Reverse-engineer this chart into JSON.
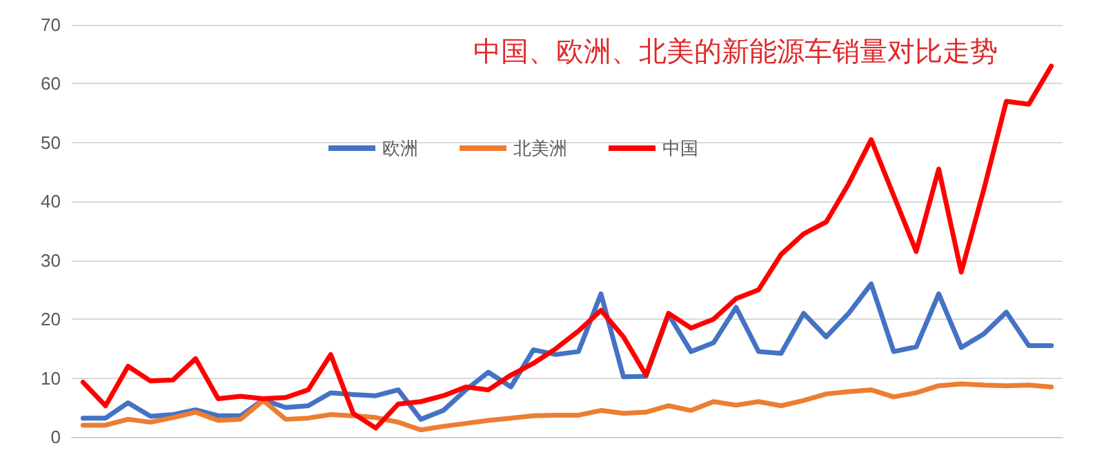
{
  "chart_data": {
    "type": "line",
    "title": "中国、欧洲、北美的新能源车销量对比走势",
    "categories": [
      null,
      null,
      null,
      null,
      null,
      null,
      null,
      null,
      null,
      null,
      null,
      null,
      null,
      null,
      null,
      null,
      null,
      null,
      null,
      null,
      null,
      null,
      null,
      null,
      null,
      null,
      null,
      null,
      null,
      null,
      null,
      null,
      null,
      null,
      null,
      null,
      null,
      null,
      null,
      null,
      null,
      null,
      null,
      null
    ],
    "series": [
      {
        "name": "欧洲",
        "color": "#4472c4",
        "values": [
          3.2,
          3.2,
          5.8,
          3.5,
          3.8,
          4.6,
          3.6,
          3.6,
          6.3,
          5,
          5.3,
          7.5,
          7.2,
          7,
          8,
          3,
          4.5,
          8,
          11,
          8.5,
          14.8,
          14,
          14.5,
          24.3,
          10.2,
          10.3,
          20.8,
          14.5,
          16,
          22,
          14.5,
          14.2,
          21,
          17,
          21,
          26,
          14.5,
          15.3,
          24.3,
          15.2,
          17.5,
          21.2,
          15.5,
          15.5
        ]
      },
      {
        "name": "北美洲",
        "color": "#ed7d31",
        "values": [
          2,
          2,
          3,
          2.5,
          3.3,
          4.2,
          2.8,
          3,
          6.2,
          3,
          3.2,
          3.8,
          3.6,
          3.3,
          2.5,
          1.2,
          1.8,
          2.3,
          2.8,
          3.2,
          3.6,
          3.7,
          3.7,
          4.5,
          4,
          4.2,
          5.3,
          4.5,
          6,
          5.4,
          6,
          5.3,
          6.2,
          7.3,
          7.7,
          8,
          6.8,
          7.5,
          8.7,
          9,
          8.8,
          8.7,
          8.8,
          8.5
        ]
      },
      {
        "name": "中国",
        "color": "#ff0000",
        "values": [
          9.3,
          5.3,
          12,
          9.5,
          9.7,
          13.3,
          6.5,
          6.9,
          6.5,
          6.7,
          8,
          14,
          4,
          1.5,
          5.6,
          6,
          7,
          8.5,
          8,
          10.5,
          12.5,
          15,
          18,
          21.5,
          17,
          10.5,
          21,
          18.5,
          20,
          23.5,
          25,
          31,
          34.5,
          36.5,
          43,
          50.5,
          41,
          31.5,
          45.5,
          28,
          42,
          57,
          56.5,
          63
        ]
      }
    ],
    "ylim": [
      0,
      70
    ],
    "yticks": [
      0,
      10,
      20,
      30,
      40,
      50,
      60,
      70
    ],
    "grid": "y",
    "legend": "top",
    "marker": "none",
    "line_style": "solid"
  }
}
